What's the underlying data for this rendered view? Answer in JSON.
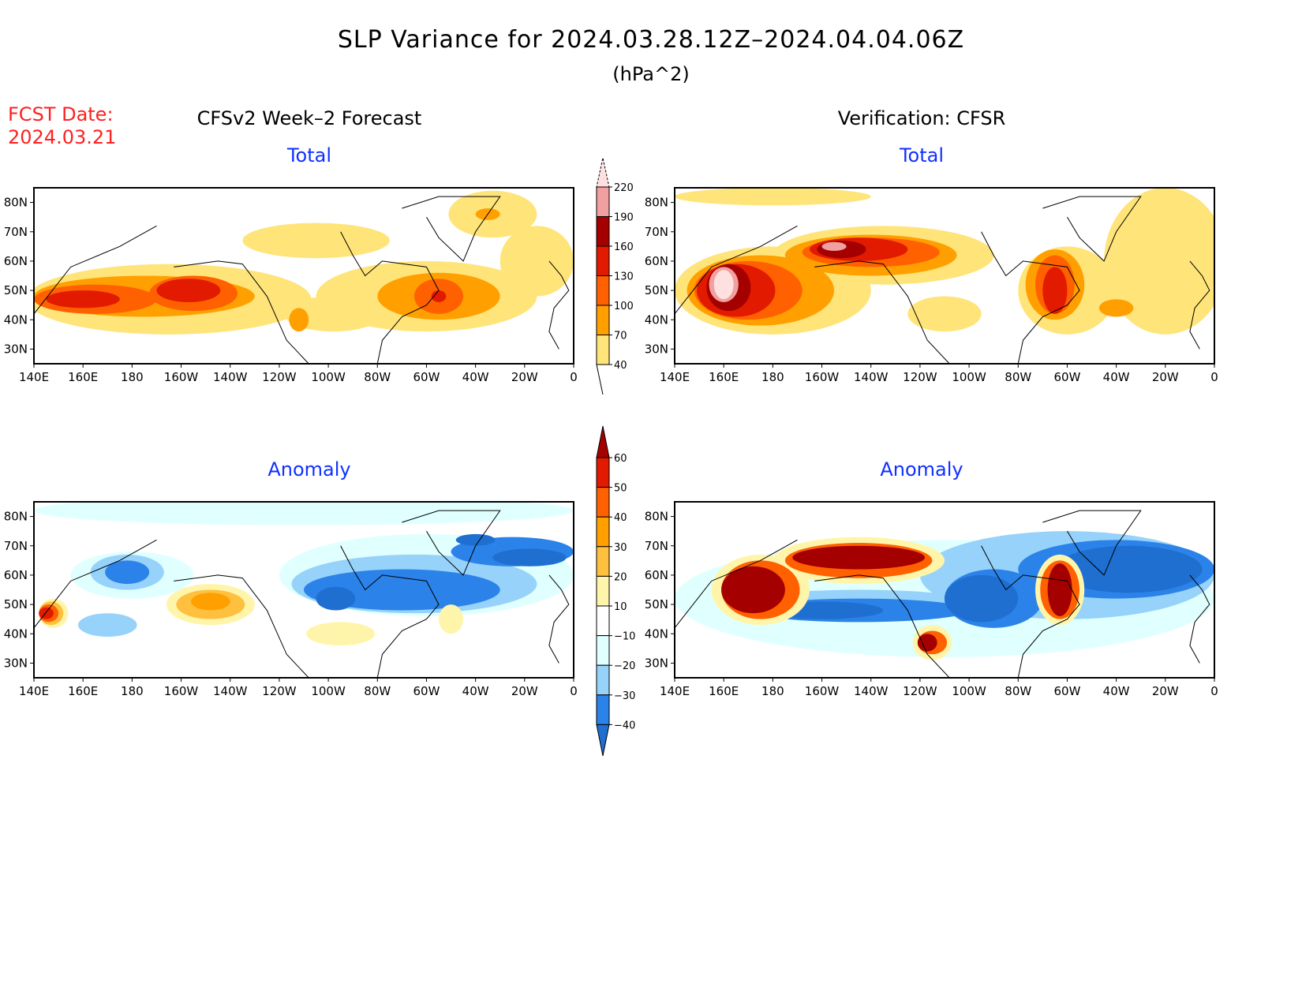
{
  "title": "SLP Variance for 2024.03.28.12Z–2024.04.04.06Z",
  "units": "(hPa^2)",
  "fcst_date_label": "FCST Date:",
  "fcst_date": "2024.03.21",
  "left_header": "CFSv2 Week–2 Forecast",
  "right_header": "Verification: CFSR",
  "chart_data": [
    {
      "type": "heatmap",
      "id": "fcst-total",
      "title": "Total",
      "xlim": [
        140,
        360
      ],
      "ylim": [
        25,
        85
      ],
      "blobs": [
        {
          "lon": 195,
          "lat": 47,
          "rl": 58,
          "rt": 12,
          "lev": 40
        },
        {
          "lon": 255,
          "lat": 67,
          "rl": 30,
          "rt": 6,
          "lev": 40
        },
        {
          "lon": 300,
          "lat": 48,
          "rl": 45,
          "rt": 12,
          "lev": 40
        },
        {
          "lon": 327,
          "lat": 76,
          "rl": 18,
          "rt": 8,
          "lev": 40
        },
        {
          "lon": 345,
          "lat": 60,
          "rl": 15,
          "rt": 12,
          "lev": 40
        },
        {
          "lon": 262,
          "lat": 42,
          "rl": 20,
          "rt": 6,
          "lev": 40
        },
        {
          "lon": 185,
          "lat": 48,
          "rl": 45,
          "rt": 7,
          "lev": 70
        },
        {
          "lon": 305,
          "lat": 48,
          "rl": 25,
          "rt": 8,
          "lev": 70
        },
        {
          "lon": 325,
          "lat": 76,
          "rl": 5,
          "rt": 2,
          "lev": 70
        },
        {
          "lon": 248,
          "lat": 40,
          "rl": 4,
          "rt": 4,
          "lev": 70
        },
        {
          "lon": 165,
          "lat": 47,
          "rl": 25,
          "rt": 5,
          "lev": 100
        },
        {
          "lon": 205,
          "lat": 49,
          "rl": 18,
          "rt": 6,
          "lev": 100
        },
        {
          "lon": 305,
          "lat": 48,
          "rl": 10,
          "rt": 6,
          "lev": 100
        },
        {
          "lon": 160,
          "lat": 47,
          "rl": 15,
          "rt": 3,
          "lev": 130
        },
        {
          "lon": 203,
          "lat": 50,
          "rl": 13,
          "rt": 4,
          "lev": 130
        },
        {
          "lon": 305,
          "lat": 48,
          "rl": 3,
          "rt": 2,
          "lev": 130
        }
      ]
    },
    {
      "type": "heatmap",
      "id": "verif-total",
      "title": "Total",
      "xlim": [
        140,
        360
      ],
      "ylim": [
        25,
        85
      ],
      "blobs": [
        {
          "lon": 180,
          "lat": 50,
          "rl": 40,
          "rt": 15,
          "lev": 40
        },
        {
          "lon": 225,
          "lat": 62,
          "rl": 45,
          "rt": 10,
          "lev": 40
        },
        {
          "lon": 300,
          "lat": 50,
          "rl": 20,
          "rt": 15,
          "lev": 40
        },
        {
          "lon": 340,
          "lat": 60,
          "rl": 25,
          "rt": 25,
          "lev": 40
        },
        {
          "lon": 250,
          "lat": 42,
          "rl": 15,
          "rt": 6,
          "lev": 40
        },
        {
          "lon": 180,
          "lat": 82,
          "rl": 40,
          "rt": 3,
          "lev": 40
        },
        {
          "lon": 175,
          "lat": 50,
          "rl": 30,
          "rt": 12,
          "lev": 70
        },
        {
          "lon": 220,
          "lat": 62,
          "rl": 35,
          "rt": 7,
          "lev": 70
        },
        {
          "lon": 295,
          "lat": 52,
          "rl": 12,
          "rt": 12,
          "lev": 70
        },
        {
          "lon": 320,
          "lat": 44,
          "rl": 7,
          "rt": 3,
          "lev": 70
        },
        {
          "lon": 170,
          "lat": 50,
          "rl": 22,
          "rt": 10,
          "lev": 100
        },
        {
          "lon": 220,
          "lat": 63,
          "rl": 28,
          "rt": 5,
          "lev": 100
        },
        {
          "lon": 295,
          "lat": 52,
          "rl": 8,
          "rt": 10,
          "lev": 100
        },
        {
          "lon": 165,
          "lat": 50,
          "rl": 16,
          "rt": 9,
          "lev": 130
        },
        {
          "lon": 215,
          "lat": 64,
          "rl": 20,
          "rt": 4,
          "lev": 130
        },
        {
          "lon": 295,
          "lat": 50,
          "rl": 5,
          "rt": 8,
          "lev": 130
        },
        {
          "lon": 162,
          "lat": 51,
          "rl": 9,
          "rt": 8,
          "lev": 160
        },
        {
          "lon": 208,
          "lat": 64,
          "rl": 10,
          "rt": 3,
          "lev": 160
        },
        {
          "lon": 160,
          "lat": 52,
          "rl": 6,
          "rt": 6,
          "lev": 190
        },
        {
          "lon": 160,
          "lat": 52,
          "rl": 4,
          "rt": 5,
          "lev": 220
        },
        {
          "lon": 205,
          "lat": 65,
          "rl": 5,
          "rt": 1.5,
          "lev": 190
        }
      ]
    },
    {
      "type": "heatmap",
      "id": "fcst-anom",
      "title": "Anomaly",
      "xlim": [
        140,
        360
      ],
      "ylim": [
        25,
        85
      ],
      "blobs": [
        {
          "lon": 250,
          "lat": 82,
          "rl": 110,
          "rt": 5,
          "lev": -10
        },
        {
          "lon": 180,
          "lat": 60,
          "rl": 25,
          "rt": 8,
          "lev": -10
        },
        {
          "lon": 300,
          "lat": 60,
          "rl": 60,
          "rt": 14,
          "lev": -10
        },
        {
          "lon": 178,
          "lat": 61,
          "rl": 15,
          "rt": 6,
          "lev": -20
        },
        {
          "lon": 170,
          "lat": 43,
          "rl": 12,
          "rt": 4,
          "lev": -20
        },
        {
          "lon": 295,
          "lat": 57,
          "rl": 50,
          "rt": 10,
          "lev": -20
        },
        {
          "lon": 178,
          "lat": 61,
          "rl": 9,
          "rt": 4,
          "lev": -30
        },
        {
          "lon": 290,
          "lat": 55,
          "rl": 40,
          "rt": 7,
          "lev": -30
        },
        {
          "lon": 335,
          "lat": 68,
          "rl": 25,
          "rt": 5,
          "lev": -30
        },
        {
          "lon": 263,
          "lat": 52,
          "rl": 8,
          "rt": 4,
          "lev": -40
        },
        {
          "lon": 342,
          "lat": 66,
          "rl": 15,
          "rt": 3,
          "lev": -40
        },
        {
          "lon": 320,
          "lat": 72,
          "rl": 8,
          "rt": 2,
          "lev": -40
        },
        {
          "lon": 212,
          "lat": 50,
          "rl": 18,
          "rt": 7,
          "lev": 10
        },
        {
          "lon": 265,
          "lat": 40,
          "rl": 14,
          "rt": 4,
          "lev": 10
        },
        {
          "lon": 148,
          "lat": 47,
          "rl": 6,
          "rt": 5,
          "lev": 10
        },
        {
          "lon": 310,
          "lat": 45,
          "rl": 5,
          "rt": 5,
          "lev": 10
        },
        {
          "lon": 212,
          "lat": 50,
          "rl": 14,
          "rt": 5,
          "lev": 20
        },
        {
          "lon": 147,
          "lat": 47,
          "rl": 5,
          "rt": 4,
          "lev": 20
        },
        {
          "lon": 212,
          "lat": 51,
          "rl": 8,
          "rt": 3,
          "lev": 30
        },
        {
          "lon": 146,
          "lat": 47,
          "rl": 4,
          "rt": 3,
          "lev": 40
        },
        {
          "lon": 145,
          "lat": 47,
          "rl": 3,
          "rt": 2,
          "lev": 50
        }
      ]
    },
    {
      "type": "heatmap",
      "id": "verif-anom",
      "title": "Anomaly",
      "xlim": [
        140,
        360
      ],
      "ylim": [
        25,
        85
      ],
      "blobs": [
        {
          "lon": 250,
          "lat": 52,
          "rl": 110,
          "rt": 20,
          "lev": -10
        },
        {
          "lon": 215,
          "lat": 50,
          "rl": 50,
          "rt": 5,
          "lev": -20
        },
        {
          "lon": 300,
          "lat": 60,
          "rl": 60,
          "rt": 15,
          "lev": -20
        },
        {
          "lon": 215,
          "lat": 48,
          "rl": 45,
          "rt": 4,
          "lev": -30
        },
        {
          "lon": 270,
          "lat": 52,
          "rl": 20,
          "rt": 10,
          "lev": -30
        },
        {
          "lon": 320,
          "lat": 62,
          "rl": 40,
          "rt": 10,
          "lev": -30
        },
        {
          "lon": 200,
          "lat": 48,
          "rl": 25,
          "rt": 3,
          "lev": -40
        },
        {
          "lon": 265,
          "lat": 52,
          "rl": 15,
          "rt": 8,
          "lev": -40
        },
        {
          "lon": 325,
          "lat": 62,
          "rl": 30,
          "rt": 8,
          "lev": -40
        },
        {
          "lon": 175,
          "lat": 55,
          "rl": 20,
          "rt": 12,
          "lev": 10
        },
        {
          "lon": 215,
          "lat": 65,
          "rl": 35,
          "rt": 8,
          "lev": 10
        },
        {
          "lon": 297,
          "lat": 55,
          "rl": 10,
          "rt": 12,
          "lev": 10
        },
        {
          "lon": 245,
          "lat": 37,
          "rl": 8,
          "rt": 6,
          "lev": 10
        },
        {
          "lon": 175,
          "lat": 55,
          "rl": 16,
          "rt": 10,
          "lev": 40
        },
        {
          "lon": 215,
          "lat": 65,
          "rl": 30,
          "rt": 6,
          "lev": 40
        },
        {
          "lon": 297,
          "lat": 55,
          "rl": 8,
          "rt": 10,
          "lev": 40
        },
        {
          "lon": 245,
          "lat": 37,
          "rl": 6,
          "rt": 4,
          "lev": 40
        },
        {
          "lon": 172,
          "lat": 55,
          "rl": 13,
          "rt": 8,
          "lev": 60
        },
        {
          "lon": 215,
          "lat": 66,
          "rl": 27,
          "rt": 4,
          "lev": 60
        },
        {
          "lon": 297,
          "lat": 55,
          "rl": 5,
          "rt": 9,
          "lev": 60
        },
        {
          "lon": 243,
          "lat": 37,
          "rl": 4,
          "rt": 3,
          "lev": 60
        }
      ]
    }
  ],
  "colorbar_total": {
    "levels": [
      "40",
      "70",
      "100",
      "130",
      "160",
      "190",
      "220"
    ],
    "colors": [
      "#ffe479",
      "#ffa000",
      "#ff6000",
      "#e11a00",
      "#a50000",
      "#f0a0a0",
      "#ffe0e0"
    ]
  },
  "colorbar_anom": {
    "levels": [
      "−40",
      "−30",
      "−20",
      "−10",
      "10",
      "20",
      "30",
      "40",
      "50",
      "60"
    ],
    "colors": [
      "#1e6fd0",
      "#2b82e8",
      "#96d2fa",
      "#e0ffff",
      "#ffffff",
      "#fff5aa",
      "#ffc040",
      "#ffa000",
      "#ff6000",
      "#e11a00",
      "#a50000"
    ]
  },
  "lon_ticks": [
    "140E",
    "160E",
    "180",
    "160W",
    "140W",
    "120W",
    "100W",
    "80W",
    "60W",
    "40W",
    "20W",
    "0"
  ],
  "lat_ticks": [
    "80N",
    "70N",
    "60N",
    "50N",
    "40N",
    "30N"
  ]
}
